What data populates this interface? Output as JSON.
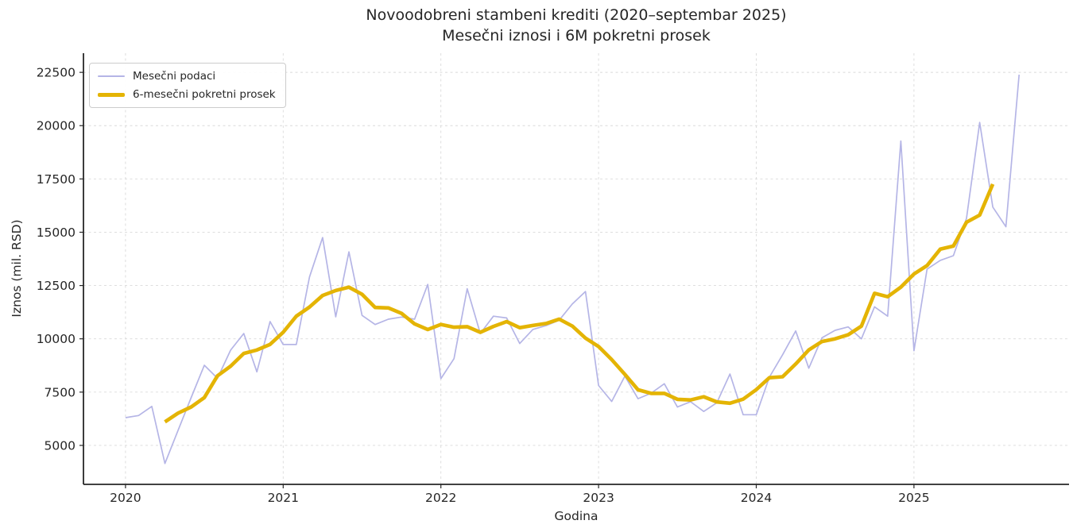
{
  "chart": {
    "title_line1": "Novoodobreni stambeni krediti (2020–septembar 2025)",
    "title_line2": "Mesečni iznosi i 6M pokretni prosek",
    "xlabel": "Godina",
    "ylabel": "Iznos (mil. RSD)"
  },
  "legend": {
    "items": [
      {
        "label": "Mesečni podaci",
        "color": "#b5b5e6",
        "thickness": 2
      },
      {
        "label": "6-mesečni pokretni prosek",
        "color": "#e4b404",
        "thickness": 5
      }
    ]
  },
  "colors": {
    "monthly_line": "#b5b5e6",
    "ma_line": "#e4b404",
    "grid": "#dadada",
    "spine": "#262626",
    "tick_text": "#262626",
    "background": "#ffffff"
  },
  "chart_data": {
    "type": "line",
    "title": "Novoodobreni stambeni krediti (2020–septembar 2025)",
    "subtitle": "Mesečni iznosi i 6M pokretni prosek",
    "xlabel": "Godina",
    "ylabel": "Iznos (mil. RSD)",
    "x_ticks": [
      2020,
      2021,
      2022,
      2023,
      2024,
      2025
    ],
    "y_ticks": [
      5000,
      7500,
      10000,
      12500,
      15000,
      17500,
      20000,
      22500
    ],
    "ylim": [
      3200,
      23400
    ],
    "grid": true,
    "legend_position": "upper left",
    "months": [
      "2020-01",
      "2020-02",
      "2020-03",
      "2020-04",
      "2020-05",
      "2020-06",
      "2020-07",
      "2020-08",
      "2020-09",
      "2020-10",
      "2020-11",
      "2020-12",
      "2021-01",
      "2021-02",
      "2021-03",
      "2021-04",
      "2021-05",
      "2021-06",
      "2021-07",
      "2021-08",
      "2021-09",
      "2021-10",
      "2021-11",
      "2021-12",
      "2022-01",
      "2022-02",
      "2022-03",
      "2022-04",
      "2022-05",
      "2022-06",
      "2022-07",
      "2022-08",
      "2022-09",
      "2022-10",
      "2022-11",
      "2022-12",
      "2023-01",
      "2023-02",
      "2023-03",
      "2023-04",
      "2023-05",
      "2023-06",
      "2023-07",
      "2023-08",
      "2023-09",
      "2023-10",
      "2023-11",
      "2023-12",
      "2024-01",
      "2024-02",
      "2024-03",
      "2024-04",
      "2024-05",
      "2024-06",
      "2024-07",
      "2024-08",
      "2024-09",
      "2024-10",
      "2024-11",
      "2024-12",
      "2025-01",
      "2025-02",
      "2025-03",
      "2025-04",
      "2025-05",
      "2025-06",
      "2025-07",
      "2025-08",
      "2025-09"
    ],
    "series": [
      {
        "name": "Mesečni podaci",
        "values": [
          6300,
          6400,
          6830,
          4150,
          5700,
          7250,
          8760,
          8150,
          9470,
          10250,
          8450,
          10810,
          9730,
          9730,
          12900,
          14750,
          11030,
          14080,
          11100,
          10670,
          10920,
          11020,
          10920,
          12550,
          8130,
          9070,
          12350,
          10250,
          11060,
          10980,
          9780,
          10440,
          10620,
          10870,
          11630,
          12220,
          7810,
          7060,
          8250,
          7190,
          7450,
          7890,
          6800,
          7050,
          6590,
          7000,
          8350,
          6440,
          6440,
          8200,
          9250,
          10370,
          8620,
          10050,
          10400,
          10560,
          10000,
          11500,
          11060,
          19280,
          9440,
          13270,
          13680,
          13900,
          15650,
          20150,
          16180,
          15260,
          22390
        ]
      },
      {
        "name": "6-mesečni pokretni prosek",
        "values": [
          null,
          null,
          null,
          6105,
          6515,
          6805,
          7245,
          8265,
          8720,
          9315,
          9475,
          9740,
          10310,
          11060,
          11490,
          12035,
          12265,
          12420,
          12090,
          11470,
          11450,
          11195,
          10700,
          10435,
          10675,
          10545,
          10570,
          10305,
          10580,
          10810,
          10520,
          10625,
          10720,
          10925,
          10600,
          10035,
          9640,
          9025,
          8330,
          7610,
          7440,
          7440,
          7160,
          7130,
          7280,
          7040,
          6980,
          7170,
          7615,
          8175,
          8220,
          8820,
          9480,
          9875,
          10000,
          10190,
          10595,
          12135,
          11975,
          12425,
          13040,
          13440,
          14205,
          14350,
          15470,
          15805,
          17255,
          null,
          null
        ]
      }
    ]
  }
}
